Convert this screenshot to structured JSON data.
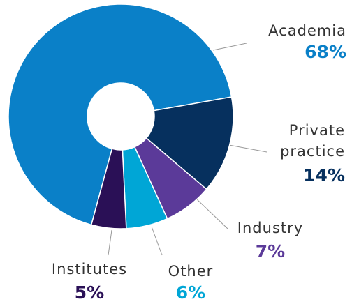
{
  "chart_data": {
    "type": "donut",
    "categories": [
      "Academia",
      "Private practice",
      "Industry",
      "Other",
      "Institutes"
    ],
    "values": [
      68,
      14,
      7,
      6,
      5
    ],
    "value_labels": [
      "68%",
      "14%",
      "7%",
      "6%",
      "5%"
    ],
    "colors": [
      "#0a80c8",
      "#06305e",
      "#5b3a99",
      "#00a6d6",
      "#2a1056"
    ]
  }
}
